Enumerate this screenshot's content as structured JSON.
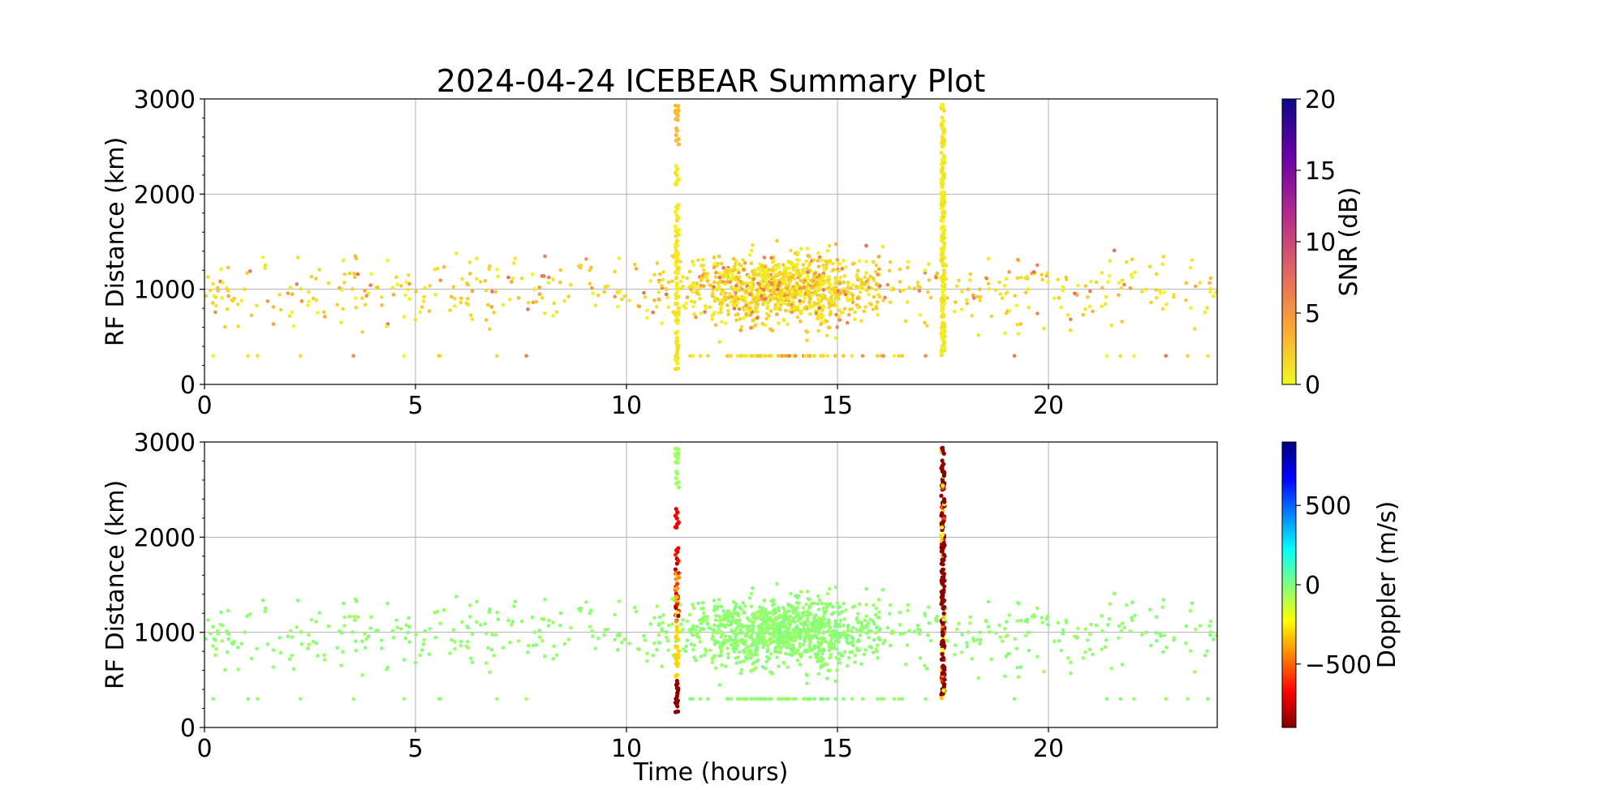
{
  "title": "2024-04-24 ICEBEAR Summary Plot",
  "chart_data": [
    {
      "type": "scatter",
      "panel": "snr",
      "ylabel": "RF Distance (km)",
      "xlim": [
        0,
        24
      ],
      "ylim": [
        0,
        3000
      ],
      "x_ticks": [
        0,
        5,
        10,
        15,
        20
      ],
      "y_ticks": [
        0,
        1000,
        2000,
        3000
      ],
      "grid": true,
      "colorbar": {
        "label": "SNR (dB)",
        "range": [
          0,
          20
        ],
        "ticks": [
          0,
          5,
          10,
          15,
          20
        ],
        "colormap": "plasma_r",
        "colors": [
          "#f0f921",
          "#fca636",
          "#e16462",
          "#b12a90",
          "#6a00a8",
          "#0d0887"
        ]
      },
      "vertical_bands": [
        {
          "x": 11.2,
          "y_range": [
            150,
            2950
          ]
        },
        {
          "x": 17.5,
          "y_range": [
            250,
            2950
          ]
        }
      ],
      "scatter_summary": {
        "x_range": [
          0,
          24
        ],
        "y_range": [
          200,
          1900
        ],
        "dense_x_range": [
          9,
          18
        ],
        "typical_snr_db": [
          0,
          5
        ]
      }
    },
    {
      "type": "scatter",
      "panel": "doppler",
      "xlabel": "Time (hours)",
      "ylabel": "RF Distance (km)",
      "xlim": [
        0,
        24
      ],
      "ylim": [
        0,
        3000
      ],
      "x_ticks": [
        0,
        5,
        10,
        15,
        20
      ],
      "y_ticks": [
        0,
        1000,
        2000,
        3000
      ],
      "grid": true,
      "colorbar": {
        "label": "Doppler (m/s)",
        "range": [
          -900,
          900
        ],
        "ticks": [
          -500,
          0,
          500
        ],
        "tick_labels": [
          "−500",
          "0",
          "500"
        ],
        "colormap": "jet_r",
        "colors": [
          "#800000",
          "#ff0000",
          "#ff8000",
          "#ffff00",
          "#80ff80",
          "#00ffff",
          "#0080ff",
          "#0000ff",
          "#000080"
        ]
      },
      "vertical_bands": [
        {
          "x": 11.2,
          "y_range": [
            150,
            2950
          ],
          "doppler_m_s": "mixed (-900 to -100)"
        },
        {
          "x": 17.5,
          "y_range": [
            250,
            2950
          ],
          "doppler_m_s": "about -900"
        }
      ],
      "scatter_summary": {
        "x_range": [
          0,
          24
        ],
        "y_range": [
          200,
          1900
        ],
        "typical_doppler_m_s": 0
      }
    }
  ]
}
